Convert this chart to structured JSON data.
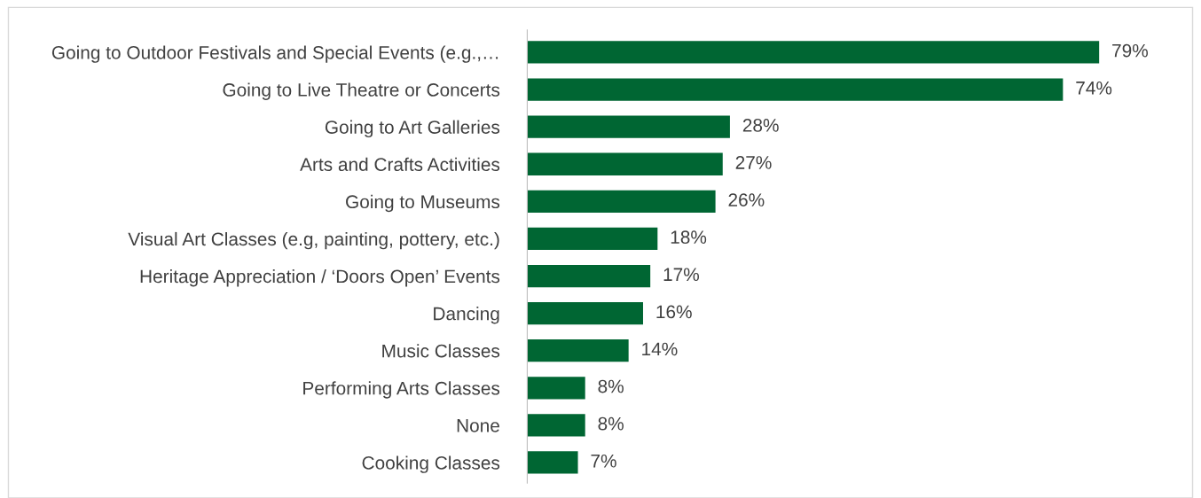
{
  "chart_data": {
    "type": "bar",
    "orientation": "horizontal",
    "color": "#006633",
    "categories": [
      "Going to Outdoor Festivals and Special Events (e.g.,…",
      "Going to Live Theatre or Concerts",
      "Going to Art Galleries",
      "Arts and Crafts Activities",
      "Going to Museums",
      "Visual Art Classes (e.g, painting, pottery, etc.)",
      "Heritage Appreciation / ‘Doors Open’ Events",
      "Dancing",
      "Music Classes",
      "Performing Arts Classes",
      "None",
      "Cooking Classes"
    ],
    "values": [
      79,
      74,
      28,
      27,
      26,
      18,
      17,
      16,
      14,
      8,
      8,
      7
    ],
    "value_labels": [
      "79%",
      "74%",
      "28%",
      "27%",
      "26%",
      "18%",
      "17%",
      "16%",
      "14%",
      "8%",
      "8%",
      "7%"
    ],
    "grid": false,
    "legend": false,
    "tick_labels": "y"
  }
}
